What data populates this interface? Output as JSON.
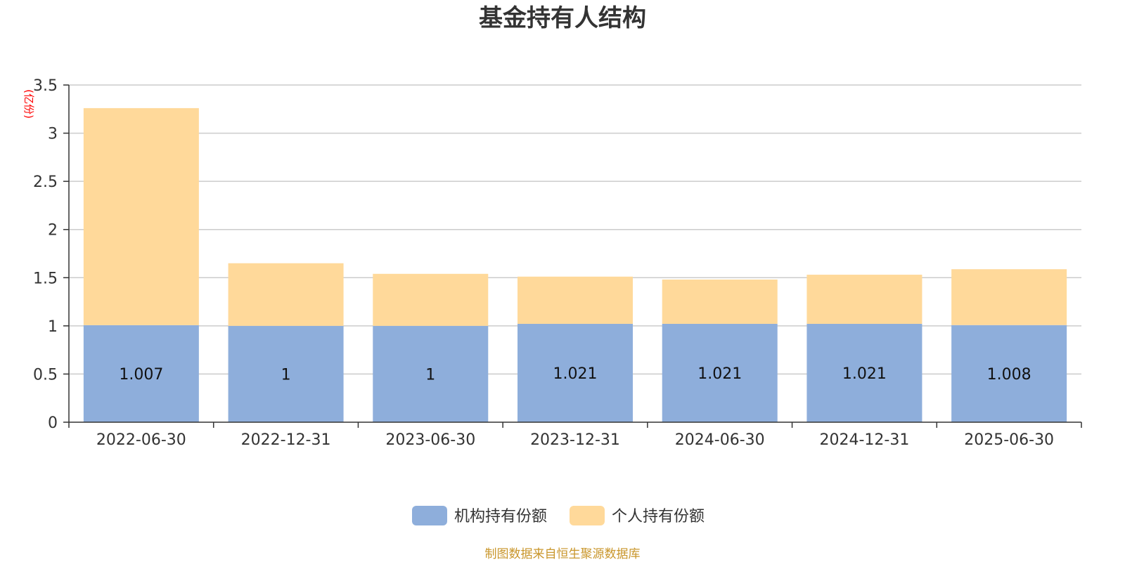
{
  "chart_data": {
    "type": "bar",
    "stacked": true,
    "title": "基金持有人结构",
    "ylabel": "(亿份)",
    "ylim": [
      0,
      3.5
    ],
    "yticks": [
      0,
      0.5,
      1,
      1.5,
      2,
      2.5,
      3,
      3.5
    ],
    "categories": [
      "2022-06-30",
      "2022-12-31",
      "2023-06-30",
      "2023-12-31",
      "2024-06-30",
      "2024-12-31",
      "2025-06-30"
    ],
    "series": [
      {
        "name": "机构持有份额",
        "color": "#8eaedb",
        "values": [
          1.007,
          1,
          1,
          1.021,
          1.021,
          1.021,
          1.008
        ],
        "labels": [
          "1.007",
          "1",
          "1",
          "1.021",
          "1.021",
          "1.021",
          "1.008"
        ]
      },
      {
        "name": "个人持有份额",
        "color": "#ffd99a",
        "values": [
          2.253,
          0.65,
          0.54,
          0.49,
          0.46,
          0.51,
          0.58
        ]
      }
    ],
    "grid": true,
    "legend_position": "bottom",
    "source": "制图数据来自恒生聚源数据库"
  }
}
